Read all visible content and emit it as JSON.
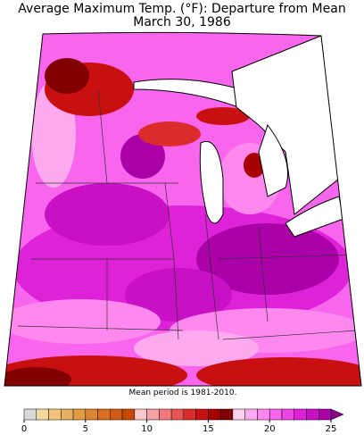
{
  "title_lines": [
    "Average Maximum Temp. (°F): Departure from Mean",
    "March 30, 1986"
  ],
  "note": "Mean period is 1981-2010.",
  "colorbar": {
    "lim": [
      0,
      25
    ],
    "ticks": [
      0,
      5,
      10,
      15,
      20,
      25
    ],
    "colors": [
      "#d9d9d9",
      "#f3d9a0",
      "#eec57a",
      "#e9b060",
      "#e39a44",
      "#dd8530",
      "#d87020",
      "#d05a10",
      "#c84800",
      "#f9c8c8",
      "#f4a3a3",
      "#ee7b7b",
      "#e85454",
      "#dc2b2b",
      "#c81010",
      "#a80000",
      "#820000",
      "#ffd0f4",
      "#ffaaf0",
      "#ff88ee",
      "#f866ee",
      "#ee44e6",
      "#dd22d8",
      "#c810c4",
      "#aa00a8"
    ],
    "over_color": "#880088"
  }
}
